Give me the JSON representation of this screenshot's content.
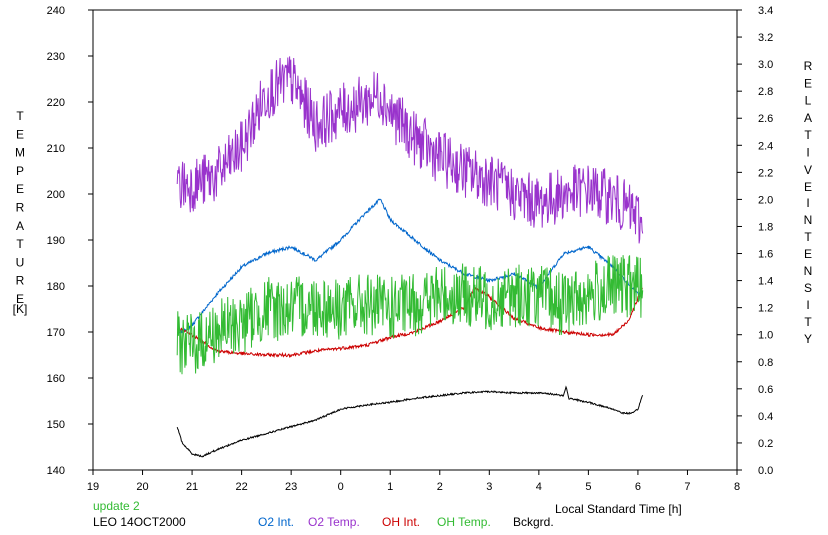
{
  "chart_data": {
    "type": "line",
    "title": "",
    "xlabel": "Local Standard Time [h]",
    "ylabel_left_letters": [
      "T",
      "E",
      "M",
      "P",
      "E",
      "R",
      "A",
      "T",
      "U",
      "R",
      "E"
    ],
    "ylabel_left_unit": "[K]",
    "ylabel_right_word1": [
      "R",
      "E",
      "L",
      "A",
      "T",
      "I",
      "V",
      "E"
    ],
    "ylabel_right_word2": [
      "I",
      "N",
      "T",
      "E",
      "N",
      "S",
      "I",
      "T",
      "Y"
    ],
    "x_ticks": [
      {
        "pos": 19,
        "label": "19"
      },
      {
        "pos": 20,
        "label": "20"
      },
      {
        "pos": 21,
        "label": "21"
      },
      {
        "pos": 22,
        "label": "22"
      },
      {
        "pos": 23,
        "label": "23"
      },
      {
        "pos": 24,
        "label": "0"
      },
      {
        "pos": 25,
        "label": "1"
      },
      {
        "pos": 26,
        "label": "2"
      },
      {
        "pos": 27,
        "label": "3"
      },
      {
        "pos": 28,
        "label": "4"
      },
      {
        "pos": 29,
        "label": "5"
      },
      {
        "pos": 30,
        "label": "6"
      },
      {
        "pos": 31,
        "label": "7"
      },
      {
        "pos": 32,
        "label": "8"
      }
    ],
    "xlim": [
      19,
      32
    ],
    "ylim_left": [
      140,
      240
    ],
    "y_left_ticks": [
      140,
      150,
      160,
      170,
      180,
      190,
      200,
      210,
      220,
      230,
      240
    ],
    "ylim_right": [
      0.0,
      3.4
    ],
    "y_right_ticks": [
      "0.0",
      "0.2",
      "0.4",
      "0.6",
      "0.8",
      "1.0",
      "1.2",
      "1.4",
      "1.6",
      "1.8",
      "2.0",
      "2.2",
      "2.4",
      "2.6",
      "2.8",
      "3.0",
      "3.2",
      "3.4"
    ],
    "grid": false,
    "legend_placement": "bottom",
    "series": [
      {
        "name": "O2 Int.",
        "axis": "right",
        "color": "#0066cc",
        "noise": 0.012,
        "x": [
          20.7,
          21.0,
          21.5,
          22.0,
          22.5,
          23.0,
          23.5,
          24.0,
          24.5,
          24.8,
          25.0,
          25.5,
          26.0,
          26.5,
          27.0,
          27.5,
          28.0,
          28.5,
          29.0,
          29.5,
          30.0,
          30.1
        ],
        "y": [
          1.0,
          1.07,
          1.3,
          1.5,
          1.6,
          1.65,
          1.55,
          1.7,
          1.9,
          2.0,
          1.85,
          1.7,
          1.55,
          1.45,
          1.4,
          1.45,
          1.35,
          1.6,
          1.65,
          1.5,
          1.3,
          1.32
        ]
      },
      {
        "name": "O2 Temp.",
        "axis": "left",
        "color": "#9933cc",
        "noise": 6,
        "x": [
          20.7,
          21.0,
          21.5,
          22.0,
          22.5,
          23.0,
          23.5,
          24.0,
          24.5,
          24.8,
          25.0,
          25.5,
          26.0,
          26.5,
          27.0,
          27.5,
          28.0,
          28.5,
          29.0,
          29.5,
          30.0,
          30.1
        ],
        "y": [
          202,
          202,
          204,
          210,
          222,
          225,
          215,
          218,
          220,
          222,
          218,
          212,
          208,
          205,
          203,
          200,
          198,
          200,
          201,
          199,
          195,
          192
        ]
      },
      {
        "name": "OH Int.",
        "axis": "right",
        "color": "#cc0000",
        "noise": 0.012,
        "x": [
          20.7,
          21.0,
          21.5,
          22.0,
          22.5,
          23.0,
          23.5,
          24.0,
          24.5,
          25.0,
          25.5,
          26.0,
          26.5,
          26.7,
          27.0,
          27.5,
          28.0,
          28.5,
          29.0,
          29.5,
          29.8,
          30.1
        ],
        "y": [
          1.05,
          1.0,
          0.88,
          0.86,
          0.85,
          0.85,
          0.88,
          0.9,
          0.92,
          0.98,
          1.02,
          1.1,
          1.2,
          1.35,
          1.28,
          1.12,
          1.05,
          1.02,
          1.0,
          1.0,
          1.1,
          1.35
        ]
      },
      {
        "name": "OH Temp.",
        "axis": "left",
        "color": "#33bb33",
        "noise": 7,
        "x": [
          20.7,
          21.0,
          21.5,
          22.0,
          22.5,
          23.0,
          23.5,
          24.0,
          24.5,
          25.0,
          25.5,
          26.0,
          26.5,
          27.0,
          27.5,
          28.0,
          28.5,
          29.0,
          29.5,
          30.0,
          30.1
        ],
        "y": [
          168,
          167,
          170,
          172,
          175,
          175,
          176,
          175,
          176,
          175,
          176,
          178,
          178,
          177,
          178,
          178,
          176,
          178,
          180,
          180,
          180
        ]
      },
      {
        "name": "Bckgrd.",
        "axis": "right",
        "color": "#000000",
        "noise": 0.006,
        "x": [
          20.7,
          20.8,
          21.0,
          21.2,
          21.5,
          22.0,
          22.5,
          23.0,
          23.5,
          24.0,
          24.5,
          25.0,
          25.5,
          26.0,
          26.5,
          27.0,
          27.5,
          28.0,
          28.3,
          28.5,
          28.55,
          28.6,
          29.0,
          29.5,
          29.7,
          29.9,
          30.0,
          30.1
        ],
        "y": [
          0.32,
          0.2,
          0.12,
          0.1,
          0.15,
          0.22,
          0.27,
          0.32,
          0.37,
          0.45,
          0.48,
          0.5,
          0.53,
          0.55,
          0.57,
          0.58,
          0.57,
          0.57,
          0.56,
          0.55,
          0.62,
          0.53,
          0.5,
          0.45,
          0.42,
          0.42,
          0.45,
          0.56
        ]
      }
    ],
    "annotations": {
      "update": "update 2",
      "station": "LEO 14OCT2000",
      "update_color": "#33bb33"
    }
  }
}
